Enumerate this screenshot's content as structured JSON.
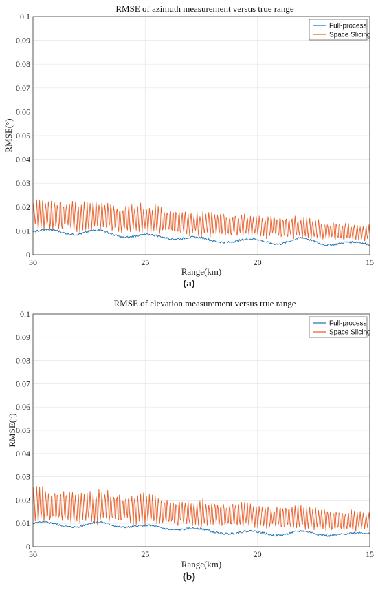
{
  "chart_data": [
    {
      "type": "line",
      "title": "RMSE of azimuth measurement versus true range",
      "xlabel": "Range(km)",
      "ylabel": "RMSE(°)",
      "xlim": [
        30,
        15
      ],
      "ylim": [
        0,
        0.1
      ],
      "x_ticks": [
        "30",
        "25",
        "20",
        "15"
      ],
      "y_ticks": [
        "0",
        "0.01",
        "0.02",
        "0.03",
        "0.04",
        "0.05",
        "0.06",
        "0.07",
        "0.08",
        "0.09",
        "0.1"
      ],
      "grid": true,
      "legend_position": "top-right",
      "caption": "(a)",
      "series": [
        {
          "name": "Full-process",
          "color": "#1f77b4",
          "x": [
            30,
            29,
            28,
            27,
            26,
            25,
            24,
            23,
            22,
            21,
            20,
            19,
            18,
            17,
            16,
            15
          ],
          "values": [
            0.0095,
            0.01,
            0.009,
            0.0098,
            0.008,
            0.0078,
            0.0075,
            0.007,
            0.006,
            0.0058,
            0.006,
            0.005,
            0.0065,
            0.0048,
            0.0047,
            0.0046
          ]
        },
        {
          "name": "Space Slicing",
          "color": "#e8602c",
          "x": [
            30,
            29,
            28,
            27,
            26,
            25,
            24,
            23,
            22,
            21,
            20,
            19,
            18,
            17,
            16,
            15
          ],
          "values": [
            0.017,
            0.0165,
            0.016,
            0.0165,
            0.015,
            0.015,
            0.0145,
            0.013,
            0.013,
            0.0125,
            0.012,
            0.0115,
            0.0115,
            0.01,
            0.0095,
            0.009
          ]
        }
      ]
    },
    {
      "type": "line",
      "title": "RMSE of elevation measurement versus true range",
      "xlabel": "Range(km)",
      "ylabel": "RMSE(°)",
      "xlim": [
        30,
        15
      ],
      "ylim": [
        0,
        0.1
      ],
      "x_ticks": [
        "30",
        "25",
        "20",
        "15"
      ],
      "y_ticks": [
        "0",
        "0.01",
        "0.02",
        "0.03",
        "0.04",
        "0.05",
        "0.06",
        "0.07",
        "0.08",
        "0.09",
        "0.1"
      ],
      "grid": true,
      "legend_position": "top-right",
      "caption": "(b)",
      "series": [
        {
          "name": "Full-process",
          "color": "#1f77b4",
          "x": [
            30,
            29,
            28,
            27,
            26,
            25,
            24,
            23,
            22,
            21,
            20,
            19,
            18,
            17,
            16,
            15
          ],
          "values": [
            0.01,
            0.0095,
            0.009,
            0.01,
            0.009,
            0.0085,
            0.008,
            0.0075,
            0.0065,
            0.006,
            0.006,
            0.0055,
            0.006,
            0.0055,
            0.005,
            0.006
          ]
        },
        {
          "name": "Space Slicing",
          "color": "#e8602c",
          "x": [
            30,
            29,
            28,
            27,
            26,
            25,
            24,
            23,
            22,
            21,
            20,
            19,
            18,
            17,
            16,
            15
          ],
          "values": [
            0.018,
            0.0175,
            0.017,
            0.0175,
            0.0165,
            0.016,
            0.015,
            0.014,
            0.014,
            0.0135,
            0.013,
            0.0125,
            0.0125,
            0.0115,
            0.011,
            0.011
          ]
        }
      ]
    }
  ]
}
